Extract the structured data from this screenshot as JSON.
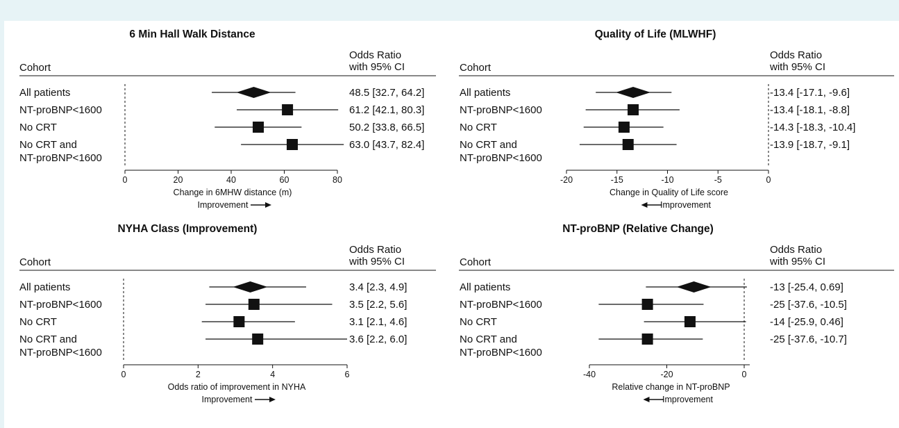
{
  "chart_data": [
    {
      "type": "forest",
      "title": "6 Min Hall Walk Distance",
      "cohort_header": "Cohort",
      "or_header": [
        "Odds Ratio",
        "with 95% CI"
      ],
      "xlabel": "Change in 6MHW distance (m)",
      "improvement_label": "Improvement",
      "improvement_direction": "right",
      "xlim": [
        0,
        80
      ],
      "ticks": [
        0,
        20,
        40,
        60,
        80
      ],
      "tick_labels": [
        "0",
        "20",
        "40",
        "60",
        "80"
      ],
      "reference_line": 0,
      "rows": [
        {
          "cohort": [
            "All patients"
          ],
          "estimate": 48.5,
          "lower": 32.7,
          "upper": 64.2,
          "text": "48.5 [32.7, 64.2]",
          "marker": "diamond"
        },
        {
          "cohort": [
            "NT-proBNP<1600"
          ],
          "estimate": 61.2,
          "lower": 42.1,
          "upper": 80.3,
          "text": "61.2 [42.1, 80.3]",
          "marker": "square"
        },
        {
          "cohort": [
            "No CRT"
          ],
          "estimate": 50.2,
          "lower": 33.8,
          "upper": 66.5,
          "text": "50.2 [33.8, 66.5]",
          "marker": "square"
        },
        {
          "cohort": [
            "No CRT and",
            "NT-proBNP<1600"
          ],
          "estimate": 63.0,
          "lower": 43.7,
          "upper": 82.4,
          "text": "63.0 [43.7, 82.4]",
          "marker": "square"
        }
      ]
    },
    {
      "type": "forest",
      "title": "Quality of Life (MLWHF)",
      "cohort_header": "Cohort",
      "or_header": [
        "Odds Ratio",
        "with 95% CI"
      ],
      "xlabel": "Change in Quality of Life score",
      "improvement_label": "Improvement",
      "improvement_direction": "left",
      "xlim": [
        -20,
        0
      ],
      "ticks": [
        -20,
        -15,
        -10,
        -5,
        0
      ],
      "tick_labels": [
        "-20",
        "-15",
        "-10",
        "-5",
        "0"
      ],
      "reference_line": 0,
      "rows": [
        {
          "cohort": [
            "All patients"
          ],
          "estimate": -13.4,
          "lower": -17.1,
          "upper": -9.6,
          "text": "-13.4 [-17.1, -9.6]",
          "marker": "diamond"
        },
        {
          "cohort": [
            "NT-proBNP<1600"
          ],
          "estimate": -13.4,
          "lower": -18.1,
          "upper": -8.8,
          "text": "-13.4 [-18.1, -8.8]",
          "marker": "square"
        },
        {
          "cohort": [
            "No CRT"
          ],
          "estimate": -14.3,
          "lower": -18.3,
          "upper": -10.4,
          "text": "-14.3 [-18.3, -10.4]",
          "marker": "square"
        },
        {
          "cohort": [
            "No CRT and",
            "NT-proBNP<1600"
          ],
          "estimate": -13.9,
          "lower": -18.7,
          "upper": -9.1,
          "text": "-13.9 [-18.7, -9.1]",
          "marker": "square"
        }
      ]
    },
    {
      "type": "forest",
      "title": "NYHA Class (Improvement)",
      "cohort_header": "Cohort",
      "or_header": [
        "Odds Ratio",
        "with 95% CI"
      ],
      "xlabel": "Odds ratio of improvement in NYHA",
      "improvement_label": "Improvement",
      "improvement_direction": "right",
      "xlim": [
        0,
        6
      ],
      "ticks": [
        0,
        2,
        4,
        6
      ],
      "tick_labels": [
        "0",
        "2",
        "4",
        "6"
      ],
      "reference_line": 0,
      "rows": [
        {
          "cohort": [
            "All patients"
          ],
          "estimate": 3.4,
          "lower": 2.3,
          "upper": 4.9,
          "text": "3.4 [2.3, 4.9]",
          "marker": "diamond"
        },
        {
          "cohort": [
            "NT-proBNP<1600"
          ],
          "estimate": 3.5,
          "lower": 2.2,
          "upper": 5.6,
          "text": "3.5 [2.2, 5.6]",
          "marker": "square"
        },
        {
          "cohort": [
            "No CRT"
          ],
          "estimate": 3.1,
          "lower": 2.1,
          "upper": 4.6,
          "text": "3.1 [2.1, 4.6]",
          "marker": "square"
        },
        {
          "cohort": [
            "No CRT and",
            "NT-proBNP<1600"
          ],
          "estimate": 3.6,
          "lower": 2.2,
          "upper": 6.0,
          "text": "3.6 [2.2, 6.0]",
          "marker": "square"
        }
      ]
    },
    {
      "type": "forest",
      "title": "NT-proBNP (Relative Change)",
      "cohort_header": "Cohort",
      "or_header": [
        "Odds Ratio",
        "with 95% CI"
      ],
      "xlabel": "Relative change in NT-proBNP",
      "improvement_label": "Improvement",
      "improvement_direction": "left",
      "xlim": [
        -40,
        0
      ],
      "ticks": [
        -40,
        -20,
        0
      ],
      "tick_labels": [
        "-40",
        "-20",
        "0"
      ],
      "reference_line": 0,
      "rows": [
        {
          "cohort": [
            "All patients"
          ],
          "estimate": -13,
          "lower": -25.4,
          "upper": 0.69,
          "text": "-13 [-25.4, 0.69]",
          "marker": "diamond"
        },
        {
          "cohort": [
            "NT-proBNP<1600"
          ],
          "estimate": -25,
          "lower": -37.6,
          "upper": -10.5,
          "text": "-25 [-37.6, -10.5]",
          "marker": "square"
        },
        {
          "cohort": [
            "No CRT"
          ],
          "estimate": -14,
          "lower": -25.9,
          "upper": 0.46,
          "text": "-14 [-25.9, 0.46]",
          "marker": "square"
        },
        {
          "cohort": [
            "No CRT and",
            "NT-proBNP<1600"
          ],
          "estimate": -25,
          "lower": -37.6,
          "upper": -10.7,
          "text": "-25 [-37.6, -10.7]",
          "marker": "square"
        }
      ]
    }
  ]
}
